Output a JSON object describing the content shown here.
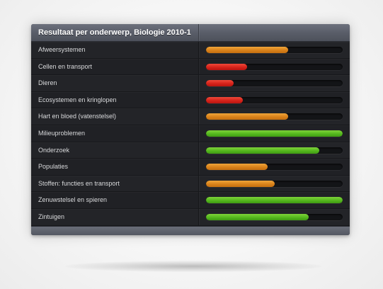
{
  "panel": {
    "title": "Resultaat per onderwerp, Biologie 2010-1"
  },
  "colors": {
    "orange": "#d9821a",
    "red": "#d6231a",
    "green": "#55b81e"
  },
  "rows": [
    {
      "label": "Afweersystemen",
      "fraction": 0.6,
      "color": "orange"
    },
    {
      "label": "Cellen en transport",
      "fraction": 0.3,
      "color": "red"
    },
    {
      "label": "Dieren",
      "fraction": 0.2,
      "color": "red"
    },
    {
      "label": "Ecosystemen en kringlopen",
      "fraction": 0.27,
      "color": "red"
    },
    {
      "label": "Hart en bloed (vatenstelsel)",
      "fraction": 0.6,
      "color": "orange"
    },
    {
      "label": "Milieuproblemen",
      "fraction": 1.0,
      "color": "green"
    },
    {
      "label": "Onderzoek",
      "fraction": 0.83,
      "color": "green"
    },
    {
      "label": "Populaties",
      "fraction": 0.45,
      "color": "orange"
    },
    {
      "label": "Stoffen: functies en transport",
      "fraction": 0.5,
      "color": "orange"
    },
    {
      "label": "Zenuwstelsel en spieren",
      "fraction": 1.0,
      "color": "green"
    },
    {
      "label": "Zintuigen",
      "fraction": 0.75,
      "color": "green"
    }
  ]
}
